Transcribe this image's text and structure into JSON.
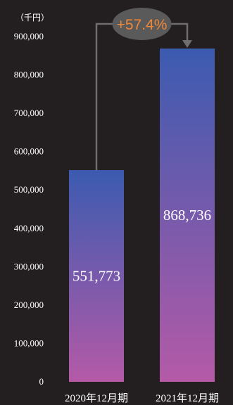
{
  "chart_data": {
    "type": "bar",
    "unit": "（千円）",
    "categories": [
      "2020年12月期",
      "2021年12月期"
    ],
    "values": [
      551773,
      868736
    ],
    "value_labels": [
      "551,773",
      "868,736"
    ],
    "ylim": [
      0,
      900000
    ],
    "yticks": [
      0,
      100000,
      200000,
      300000,
      400000,
      500000,
      600000,
      700000,
      800000,
      900000
    ],
    "ytick_labels": [
      "0",
      "100,000",
      "200,000",
      "300,000",
      "400,000",
      "500,000",
      "600,000",
      "700,000",
      "800,000",
      "900,000"
    ],
    "annotation": "+57.4%",
    "grid": false,
    "colors": {
      "background": "#231f20",
      "bar_top": "#3b5bb0",
      "bar_bottom": "#b45aa7",
      "connector": "#6e6e6e",
      "annotation_fill": "#5a5a5a",
      "annotation_text": "#f0883a"
    }
  }
}
